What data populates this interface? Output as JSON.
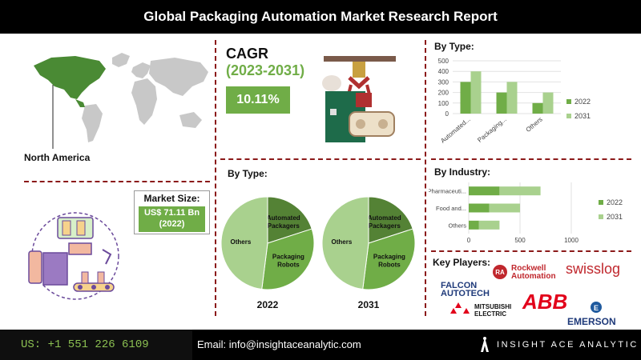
{
  "header": {
    "title": "Global Packaging Automation Market Research Report"
  },
  "region": {
    "label": "North America"
  },
  "cagr": {
    "title": "CAGR",
    "years": "(2023-2031)",
    "value": "10.11%"
  },
  "market_size": {
    "label": "Market Size:",
    "value_line1": "US$ 71.11 Bn",
    "value_line2": "(2022)"
  },
  "pies": {
    "title": "By Type:"
  },
  "footer": {
    "phone": "US: +1 551 226 6109",
    "email": "Email: info@insightaceanalytic.com",
    "brand": "INSIGHT ACE ANALYTIC"
  },
  "key_players": {
    "title": "Key Players:",
    "logos": [
      "Rockwell Automation",
      "swisslog",
      "FALCON AUTOTECH",
      "ABB",
      "MITSUBISHI ELECTRIC",
      "EMERSON"
    ]
  },
  "colors": {
    "dark_green": "#70ad47",
    "light_green": "#a9d18e",
    "pie_dark": "#548235",
    "pie_mid": "#70ad47",
    "pie_light": "#a9d18e",
    "divider": "#8b1a1a"
  },
  "chart_data": [
    {
      "type": "bar",
      "title": "By Type:",
      "categories": [
        "Automated...",
        "Packaging...",
        "Others"
      ],
      "series": [
        {
          "name": "2022",
          "values": [
            300,
            200,
            100
          ]
        },
        {
          "name": "2031",
          "values": [
            400,
            300,
            200
          ]
        }
      ],
      "ylim": [
        0,
        500
      ],
      "yticks": [
        0,
        100,
        200,
        300,
        400,
        500
      ],
      "legend": "right"
    },
    {
      "type": "bar",
      "orientation": "horizontal",
      "stacked": true,
      "title": "By Industry:",
      "categories": [
        "Pharmaceuti...",
        "Food and...",
        "Others"
      ],
      "series": [
        {
          "name": "2022",
          "values": [
            300,
            200,
            100
          ]
        },
        {
          "name": "2031",
          "values": [
            400,
            300,
            200
          ]
        }
      ],
      "xlim": [
        0,
        1000
      ],
      "xticks": [
        0,
        500,
        1000
      ],
      "legend": "right"
    },
    {
      "type": "pie",
      "xlabel": "2022",
      "slices": [
        {
          "label": "Automated Packagers",
          "value": 20
        },
        {
          "label": "Packaging Robots",
          "value": 32
        },
        {
          "label": "Others",
          "value": 48
        }
      ]
    },
    {
      "type": "pie",
      "xlabel": "2031",
      "slices": [
        {
          "label": "Automated Packagers",
          "value": 20
        },
        {
          "label": "Packaging Robots",
          "value": 32
        },
        {
          "label": "Others",
          "value": 48
        }
      ]
    }
  ]
}
